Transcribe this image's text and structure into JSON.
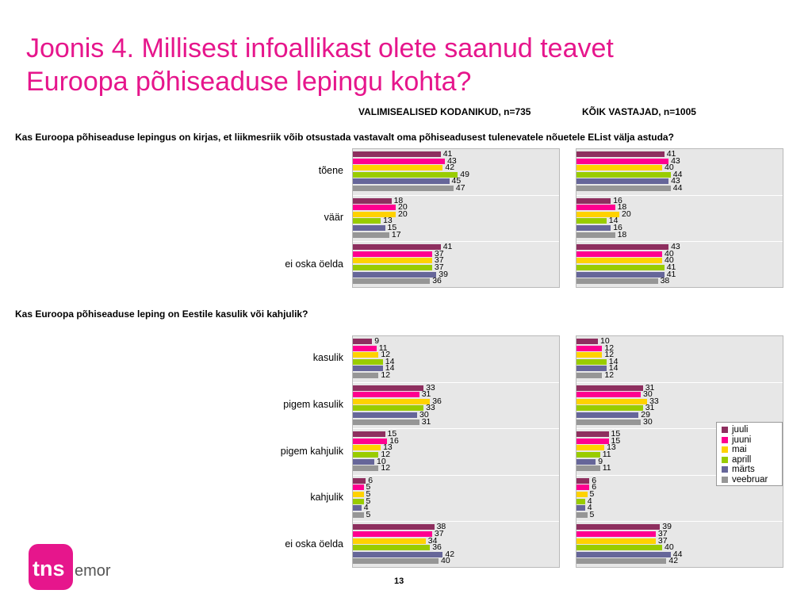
{
  "header": {
    "title_line1": "Joonis 4. Millisest infoallikast olete saanud teavet",
    "title_line2": "Euroopa põhiseaduse lepingu kohta?"
  },
  "columns": {
    "left": "VALIMISEALISED KODANIKUD, n=735",
    "right": "KÕIK VASTAJAD, n=1005"
  },
  "page_number": "13",
  "logo_text": "tns emor",
  "chart_data": [
    {
      "type": "bar",
      "orientation": "horizontal",
      "title": "Kas Euroopa põhiseaduse lepingus on kirjas, et liikmesriik võib otsustada vastavalt oma põhiseadusest tulenevatele nõuetele EList välja astuda?",
      "categories": [
        "tõene",
        "väär",
        "ei oska öelda"
      ],
      "panels": [
        {
          "name": "VALIMISEALISED KODANIKUD, n=735",
          "series": [
            {
              "name": "juuli",
              "values": [
                41,
                18,
                41
              ]
            },
            {
              "name": "juuni",
              "values": [
                43,
                20,
                37
              ]
            },
            {
              "name": "mai",
              "values": [
                42,
                20,
                37
              ]
            },
            {
              "name": "aprill",
              "values": [
                49,
                13,
                37
              ]
            },
            {
              "name": "märts",
              "values": [
                45,
                15,
                39
              ]
            },
            {
              "name": "veebruar",
              "values": [
                47,
                17,
                36
              ]
            }
          ]
        },
        {
          "name": "KÕIK VASTAJAD, n=1005",
          "series": [
            {
              "name": "juuli",
              "values": [
                41,
                16,
                43
              ]
            },
            {
              "name": "juuni",
              "values": [
                43,
                18,
                40
              ]
            },
            {
              "name": "mai",
              "values": [
                40,
                20,
                40
              ]
            },
            {
              "name": "aprill",
              "values": [
                44,
                14,
                41
              ]
            },
            {
              "name": "märts",
              "values": [
                43,
                16,
                41
              ]
            },
            {
              "name": "veebruar",
              "values": [
                44,
                18,
                38
              ]
            }
          ]
        }
      ],
      "xlim": [
        0,
        100
      ]
    },
    {
      "type": "bar",
      "orientation": "horizontal",
      "title": "Kas Euroopa põhiseaduse leping on Eestile kasulik või kahjulik?",
      "categories": [
        "kasulik",
        "pigem kasulik",
        "pigem kahjulik",
        "kahjulik",
        "ei oska öelda"
      ],
      "panels": [
        {
          "name": "VALIMISEALISED KODANIKUD, n=735",
          "series": [
            {
              "name": "juuli",
              "values": [
                9,
                33,
                15,
                6,
                38
              ]
            },
            {
              "name": "juuni",
              "values": [
                11,
                31,
                16,
                5,
                37
              ]
            },
            {
              "name": "mai",
              "values": [
                12,
                36,
                13,
                5,
                34
              ]
            },
            {
              "name": "aprill",
              "values": [
                14,
                33,
                12,
                5,
                36
              ]
            },
            {
              "name": "märts",
              "values": [
                14,
                30,
                10,
                4,
                42
              ]
            },
            {
              "name": "veebruar",
              "values": [
                12,
                31,
                12,
                5,
                40
              ]
            }
          ]
        },
        {
          "name": "KÕIK VASTAJAD, n=1005",
          "series": [
            {
              "name": "juuli",
              "values": [
                10,
                31,
                15,
                6,
                39
              ]
            },
            {
              "name": "juuni",
              "values": [
                12,
                30,
                15,
                6,
                37
              ]
            },
            {
              "name": "mai",
              "values": [
                12,
                33,
                13,
                5,
                37
              ]
            },
            {
              "name": "aprill",
              "values": [
                14,
                31,
                11,
                4,
                40
              ]
            },
            {
              "name": "märts",
              "values": [
                14,
                29,
                9,
                4,
                44
              ]
            },
            {
              "name": "veebruar",
              "values": [
                12,
                30,
                11,
                5,
                42
              ]
            }
          ]
        }
      ],
      "xlim": [
        0,
        100
      ]
    }
  ],
  "legend": {
    "placement": "right",
    "items": [
      {
        "name": "juuli",
        "color": "#8e2f5f"
      },
      {
        "name": "juuni",
        "color": "#ff0090"
      },
      {
        "name": "mai",
        "color": "#ffd200"
      },
      {
        "name": "aprill",
        "color": "#99cc00"
      },
      {
        "name": "märts",
        "color": "#666699"
      },
      {
        "name": "veebruar",
        "color": "#969696"
      }
    ]
  },
  "colors": {
    "title": "#e6168c",
    "panel_bg": "#e7e7e7",
    "logo": "#e6168c"
  }
}
